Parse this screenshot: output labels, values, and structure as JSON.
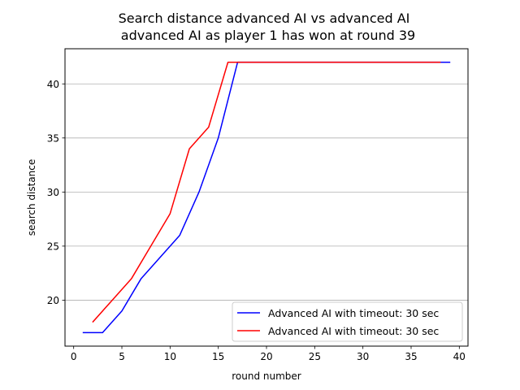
{
  "chart_data": {
    "type": "line",
    "title": "Search distance advanced AI vs advanced AI",
    "subtitle": "advanced AI as player 1 has won at round 39",
    "xlabel": "round number",
    "ylabel": "search distance",
    "xlim": [
      -0.9,
      40.9
    ],
    "ylim": [
      15.75,
      43.25
    ],
    "xticks": [
      0,
      5,
      10,
      15,
      20,
      25,
      30,
      35,
      40
    ],
    "yticks": [
      20,
      25,
      30,
      35,
      40
    ],
    "grid": "horizontal",
    "legend_position": "bottom-right",
    "series": [
      {
        "name": "Advanced AI with timeout: 30 sec",
        "color": "#0000ff",
        "x": [
          1,
          3,
          5,
          7,
          9,
          11,
          13,
          15,
          17,
          19,
          21,
          23,
          25,
          27,
          29,
          31,
          33,
          35,
          37,
          39
        ],
        "y": [
          17,
          17,
          19,
          22,
          24,
          26,
          30,
          35,
          42,
          42,
          42,
          42,
          42,
          42,
          42,
          42,
          42,
          42,
          42,
          42
        ]
      },
      {
        "name": "Advanced AI with timeout: 30 sec",
        "color": "#ff0000",
        "x": [
          2,
          4,
          6,
          8,
          10,
          12,
          14,
          16,
          18,
          20,
          22,
          24,
          26,
          28,
          30,
          32,
          34,
          36,
          38
        ],
        "y": [
          18,
          20,
          22,
          25,
          28,
          34,
          36,
          42,
          42,
          42,
          42,
          42,
          42,
          42,
          42,
          42,
          42,
          42,
          42
        ]
      }
    ]
  }
}
